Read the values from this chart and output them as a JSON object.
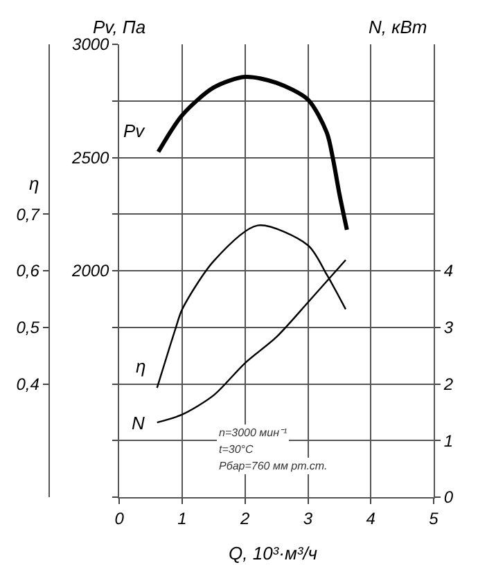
{
  "chart_data": {
    "type": "line",
    "xlabel": "Q, 10³·м³/ч",
    "ylabel": "Pv, Па",
    "y2label": "N, кВт",
    "y3label": "η",
    "xlim": [
      0,
      5
    ],
    "xticks": [
      0,
      1,
      2,
      3,
      4,
      5
    ],
    "ylim": [
      1000,
      3000
    ],
    "yticks": [
      {
        "value": 1000,
        "label": null
      },
      {
        "value": 1250,
        "label": null
      },
      {
        "value": 1500,
        "label": null
      },
      {
        "value": 1750,
        "label": null
      },
      2000,
      {
        "value": 2250,
        "label": null
      },
      2500,
      {
        "value": 2750,
        "label": null
      },
      3000
    ],
    "y2lim": [
      0,
      8
    ],
    "y2ticks": [
      0,
      1,
      2,
      3,
      4
    ],
    "y3lim": [
      0.2,
      1.0
    ],
    "y3ticks": [
      {
        "value": 0.4,
        "label": "0,4"
      },
      {
        "value": 0.5,
        "label": "0,5"
      },
      {
        "value": 0.6,
        "label": "0,6"
      },
      {
        "value": 0.7,
        "label": "0,7"
      }
    ],
    "grid": true,
    "legend": false,
    "marker": "none",
    "line_style": "solid",
    "series": [
      {
        "name": "Pv",
        "color": "#000000",
        "axis": "y",
        "x": [
          0.62,
          1.0,
          1.5,
          2.0,
          2.5,
          3.0,
          3.3,
          3.4,
          3.5,
          3.62
        ],
        "values": [
          2525,
          2687,
          2809,
          2856,
          2830,
          2756,
          2610,
          2492,
          2340,
          2181
        ]
      },
      {
        "name": "η",
        "color": "#000000",
        "axis": "y3",
        "x": [
          0.6,
          0.8,
          0.9,
          1.0,
          1.5,
          2.2,
          3.0,
          3.3,
          3.6
        ],
        "values": [
          0.393,
          0.465,
          0.5,
          0.532,
          0.617,
          0.68,
          0.645,
          0.593,
          0.532
        ]
      },
      {
        "name": "N",
        "color": "#000000",
        "axis": "y2",
        "x": [
          0.6,
          1.0,
          1.5,
          2.0,
          2.5,
          3.0,
          3.6
        ],
        "values": [
          1.32,
          1.46,
          1.8,
          2.37,
          2.83,
          3.44,
          4.19
        ]
      }
    ],
    "annotations": [
      "n=3000 мин⁻¹",
      "t=30°C",
      "Pбар=760 мм рт.ст."
    ]
  }
}
